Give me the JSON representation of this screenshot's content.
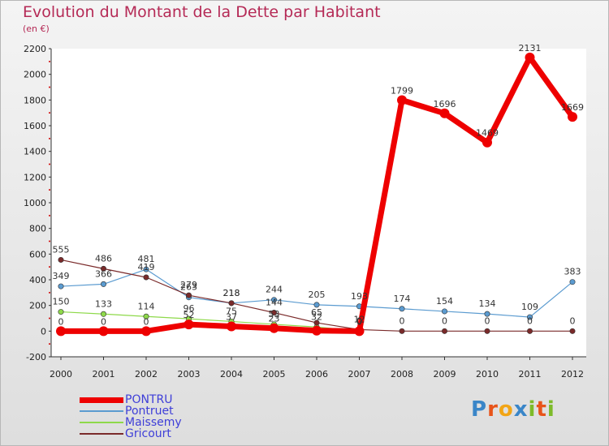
{
  "chart_data": {
    "type": "line",
    "title": "Evolution du Montant de la Dette par Habitant",
    "subtitle": "(en €)",
    "x": [
      "2000",
      "2001",
      "2002",
      "2003",
      "2004",
      "2005",
      "2006",
      "2007",
      "2008",
      "2009",
      "2010",
      "2011",
      "2012"
    ],
    "ylim": [
      -200,
      2200
    ],
    "yticks": [
      -200,
      0,
      200,
      400,
      600,
      800,
      1000,
      1200,
      1400,
      1600,
      1800,
      2000,
      2200
    ],
    "grid": false,
    "legend_position": "bottom-left",
    "series": [
      {
        "name": "PONTRU",
        "color": "#ee0000",
        "values": [
          0,
          0,
          0,
          52,
          37,
          23,
          4,
          0,
          1799,
          1696,
          1469,
          2131,
          1669
        ],
        "labels": [
          "0",
          "0",
          "0",
          "52",
          "37",
          "23",
          "",
          "0",
          "1799",
          "1696",
          "1469",
          "2131",
          "1669"
        ]
      },
      {
        "name": "Pontruet",
        "color": "#5b9bd0",
        "values": [
          349,
          366,
          481,
          263,
          218,
          244,
          205,
          193,
          174,
          154,
          134,
          109,
          383
        ],
        "labels": [
          "349",
          "366",
          "481",
          "263",
          "218",
          "244",
          "205",
          "193",
          "174",
          "154",
          "134",
          "109",
          "383"
        ]
      },
      {
        "name": "Maissemy",
        "color": "#8ed94a",
        "values": [
          150,
          133,
          114,
          96,
          75,
          53,
          32,
          0,
          null,
          null,
          null,
          null,
          null
        ],
        "labels": [
          "150",
          "133",
          "114",
          "96",
          "75",
          "53",
          "32",
          "0",
          "",
          "",
          "",
          "",
          ""
        ]
      },
      {
        "name": "Gricourt",
        "color": "#7a2a2a",
        "values": [
          555,
          486,
          419,
          279,
          218,
          144,
          65,
          12,
          0,
          0,
          0,
          0,
          0
        ],
        "labels": [
          "555",
          "486",
          "419",
          "279",
          "218",
          "144",
          "65",
          "12",
          "0",
          "0",
          "0",
          "0",
          "0"
        ]
      }
    ]
  },
  "logo": {
    "text": "Proxiti"
  }
}
